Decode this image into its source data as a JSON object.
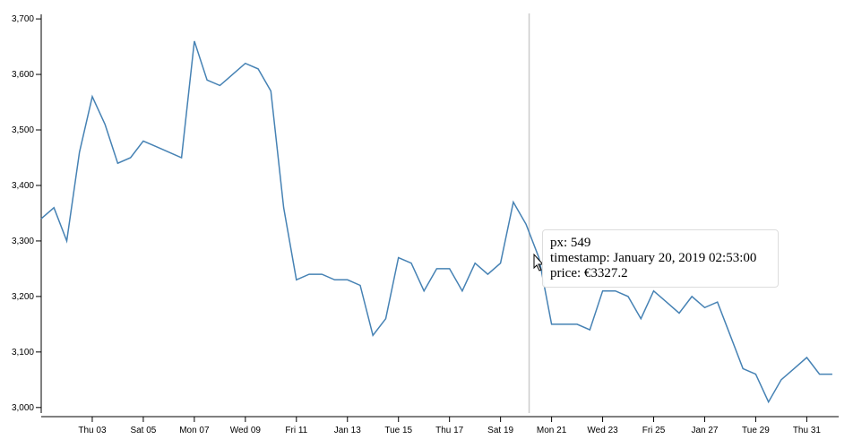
{
  "chart_data": {
    "type": "line",
    "x": [
      "2019-01-01T00:00",
      "2019-01-01T12:00",
      "2019-01-02T00:00",
      "2019-01-02T12:00",
      "2019-01-03T00:00",
      "2019-01-03T12:00",
      "2019-01-04T00:00",
      "2019-01-04T12:00",
      "2019-01-05T00:00",
      "2019-01-05T12:00",
      "2019-01-06T00:00",
      "2019-01-06T12:00",
      "2019-01-07T00:00",
      "2019-01-07T12:00",
      "2019-01-08T00:00",
      "2019-01-08T12:00",
      "2019-01-09T00:00",
      "2019-01-09T12:00",
      "2019-01-10T00:00",
      "2019-01-10T12:00",
      "2019-01-11T00:00",
      "2019-01-11T12:00",
      "2019-01-12T00:00",
      "2019-01-12T12:00",
      "2019-01-13T00:00",
      "2019-01-13T12:00",
      "2019-01-14T00:00",
      "2019-01-14T12:00",
      "2019-01-15T00:00",
      "2019-01-15T12:00",
      "2019-01-16T00:00",
      "2019-01-16T12:00",
      "2019-01-17T00:00",
      "2019-01-17T12:00",
      "2019-01-18T00:00",
      "2019-01-18T12:00",
      "2019-01-19T00:00",
      "2019-01-19T12:00",
      "2019-01-20T00:00",
      "2019-01-20T12:00",
      "2019-01-21T00:00",
      "2019-01-21T12:00",
      "2019-01-22T00:00",
      "2019-01-22T12:00",
      "2019-01-23T00:00",
      "2019-01-23T12:00",
      "2019-01-24T00:00",
      "2019-01-24T12:00",
      "2019-01-25T00:00",
      "2019-01-25T12:00",
      "2019-01-26T00:00",
      "2019-01-26T12:00",
      "2019-01-27T00:00",
      "2019-01-27T12:00",
      "2019-01-28T00:00",
      "2019-01-28T12:00",
      "2019-01-29T00:00",
      "2019-01-29T12:00",
      "2019-01-30T00:00",
      "2019-01-30T12:00",
      "2019-01-31T00:00",
      "2019-01-31T12:00",
      "2019-02-01T00:00"
    ],
    "series": [
      {
        "color": "#4682b4",
        "values": [
          3340,
          3360,
          3300,
          3460,
          3560,
          3510,
          3440,
          3450,
          3480,
          3470,
          3460,
          3450,
          3660,
          3590,
          3580,
          3600,
          3620,
          3610,
          3570,
          3360,
          3230,
          3240,
          3240,
          3230,
          3230,
          3220,
          3130,
          3160,
          3270,
          3260,
          3210,
          3250,
          3250,
          3210,
          3260,
          3240,
          3260,
          3370,
          3330,
          3270,
          3150,
          3150,
          3150,
          3140,
          3210,
          3210,
          3200,
          3160,
          3210,
          3190,
          3170,
          3200,
          3180,
          3190,
          3130,
          3070,
          3060,
          3010,
          3050,
          3070,
          3090,
          3060,
          3060
        ]
      }
    ],
    "xlim": [
      "2019-01-01T00:00",
      "2019-02-01T06:00"
    ],
    "xticks": [
      {
        "value": "2019-01-03T00:00",
        "label": "Thu 03"
      },
      {
        "value": "2019-01-05T00:00",
        "label": "Sat 05"
      },
      {
        "value": "2019-01-07T00:00",
        "label": "Mon 07"
      },
      {
        "value": "2019-01-09T00:00",
        "label": "Wed 09"
      },
      {
        "value": "2019-01-11T00:00",
        "label": "Fri 11"
      },
      {
        "value": "2019-01-13T00:00",
        "label": "Jan 13"
      },
      {
        "value": "2019-01-15T00:00",
        "label": "Tue 15"
      },
      {
        "value": "2019-01-17T00:00",
        "label": "Thu 17"
      },
      {
        "value": "2019-01-19T00:00",
        "label": "Sat 19"
      },
      {
        "value": "2019-01-21T00:00",
        "label": "Mon 21"
      },
      {
        "value": "2019-01-23T00:00",
        "label": "Wed 23"
      },
      {
        "value": "2019-01-25T00:00",
        "label": "Fri 25"
      },
      {
        "value": "2019-01-27T00:00",
        "label": "Jan 27"
      },
      {
        "value": "2019-01-29T00:00",
        "label": "Tue 29"
      },
      {
        "value": "2019-01-31T00:00",
        "label": "Thu 31"
      }
    ],
    "ylim": [
      2990,
      3705
    ],
    "yticks": [
      {
        "value": 3000,
        "label": "3,000"
      },
      {
        "value": 3100,
        "label": "3,100"
      },
      {
        "value": 3200,
        "label": "3,200"
      },
      {
        "value": 3300,
        "label": "3,300"
      },
      {
        "value": 3400,
        "label": "3,400"
      },
      {
        "value": 3500,
        "label": "3,500"
      },
      {
        "value": 3600,
        "label": "3,600"
      },
      {
        "value": 3700,
        "label": "3,700"
      }
    ],
    "tooltip": {
      "lines": [
        "px: 549",
        "timestamp: January 20, 2019 02:53:00",
        "price: €3327.2"
      ]
    }
  }
}
